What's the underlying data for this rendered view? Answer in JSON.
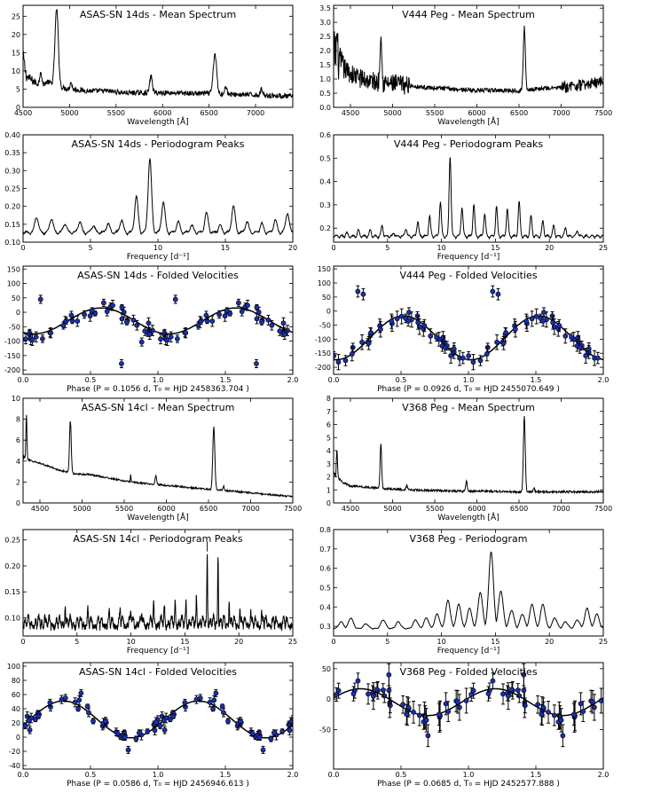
{
  "figure": {
    "grid": "6x2"
  },
  "chart_data": [
    {
      "type": "line",
      "title": "ASAS-SN 14ds - Mean Spectrum",
      "xlabel": "Wavelength [Å]",
      "ylabel": "",
      "xlim": [
        4500,
        7400
      ],
      "ylim": [
        0,
        28
      ],
      "xticks": [
        4500,
        5000,
        5500,
        6000,
        6500,
        7000
      ],
      "yticks": [
        0,
        5,
        10,
        15,
        20,
        25
      ],
      "series": [
        {
          "name": "spectrum",
          "style": "spectrum",
          "baseline": 5,
          "x": [
            4500,
            4620,
            4700,
            4760,
            4850,
            4900,
            5000,
            5200,
            5400,
            5600,
            5750,
            5880,
            5950,
            6100,
            6300,
            6500,
            6650,
            6800,
            7000,
            7200,
            7400
          ],
          "y": [
            9,
            7,
            6,
            7,
            6,
            5.5,
            5,
            4.5,
            4.5,
            4,
            4,
            4,
            4,
            4,
            3.8,
            3.8,
            3.6,
            3.5,
            3.4,
            3.2,
            3.0
          ],
          "lines": [
            [
              4861,
              21,
              18
            ],
            [
              4690,
              4,
              10
            ],
            [
              4500,
              5,
              15
            ],
            [
              5876,
              4.5,
              14
            ],
            [
              5015,
              2,
              10
            ],
            [
              6563,
              11,
              18
            ],
            [
              6678,
              2,
              14
            ],
            [
              7065,
              1.5,
              14
            ]
          ],
          "noise": 0.7
        }
      ]
    },
    {
      "type": "line",
      "title": "V444 Peg - Mean Spectrum",
      "xlabel": "Wavelength [Å]",
      "ylabel": "",
      "xlim": [
        4300,
        7500
      ],
      "ylim": [
        0,
        3.6
      ],
      "xticks": [
        4500,
        5000,
        5500,
        6000,
        6500,
        7000,
        7500
      ],
      "yticks": [
        0.0,
        0.5,
        1.0,
        1.5,
        2.0,
        2.5,
        3.0,
        3.5
      ],
      "series": [
        {
          "name": "spectrum",
          "style": "spectrum",
          "baseline": 0.8,
          "x": [
            4300,
            4350,
            4450,
            4550,
            4700,
            4900,
            5100,
            5400,
            5700,
            6000,
            6300,
            6500,
            6700,
            7000,
            7300,
            7500
          ],
          "y": [
            2.0,
            1.6,
            1.3,
            1.1,
            0.95,
            0.85,
            0.8,
            0.7,
            0.65,
            0.6,
            0.6,
            0.6,
            0.65,
            0.7,
            0.8,
            0.95
          ],
          "lines": [
            [
              4861,
              1.9,
              10
            ],
            [
              6563,
              2.2,
              12
            ],
            [
              4340,
              0.8,
              8
            ]
          ],
          "noise": 0.22
        }
      ]
    },
    {
      "type": "line",
      "title": "ASAS-SN 14ds - Periodogram Peaks",
      "xlabel": "Frequency [d⁻¹]",
      "ylabel": "",
      "xlim": [
        0,
        20
      ],
      "ylim": [
        0.1,
        0.4
      ],
      "xticks": [
        0,
        5,
        10,
        15,
        20
      ],
      "yticks": [
        0.1,
        0.15,
        0.2,
        0.25,
        0.3,
        0.35,
        0.4
      ],
      "series": [
        {
          "name": "power",
          "style": "periodogram",
          "baseline": 0.12,
          "width": 0.13,
          "peaks": [
            [
              1.0,
              0.165
            ],
            [
              2.1,
              0.16
            ],
            [
              3.1,
              0.145
            ],
            [
              4.2,
              0.15
            ],
            [
              5.2,
              0.14
            ],
            [
              6.3,
              0.145
            ],
            [
              7.3,
              0.155
            ],
            [
              8.4,
              0.22
            ],
            [
              9.4,
              0.325
            ],
            [
              10.4,
              0.205
            ],
            [
              11.5,
              0.15
            ],
            [
              12.5,
              0.14
            ],
            [
              13.6,
              0.175
            ],
            [
              14.6,
              0.14
            ],
            [
              15.6,
              0.195
            ],
            [
              16.6,
              0.15
            ],
            [
              17.7,
              0.145
            ],
            [
              18.7,
              0.155
            ],
            [
              19.6,
              0.175
            ]
          ],
          "noise": 0.008
        }
      ]
    },
    {
      "type": "line",
      "title": "V444 Peg - Periodogram Peaks",
      "xlabel": "Frequency [d⁻¹]",
      "ylabel": "",
      "xlim": [
        0,
        25
      ],
      "ylim": [
        0.14,
        0.6
      ],
      "xticks": [
        0,
        5,
        10,
        15,
        20,
        25
      ],
      "yticks": [
        0.2,
        0.3,
        0.4,
        0.5,
        0.6
      ],
      "series": [
        {
          "name": "power",
          "style": "periodogram",
          "baseline": 0.155,
          "width": 0.09,
          "peaks": [
            [
              3.4,
              0.18
            ],
            [
              4.5,
              0.2
            ],
            [
              5.6,
              0.17
            ],
            [
              6.7,
              0.19
            ],
            [
              7.8,
              0.22
            ],
            [
              8.9,
              0.24
            ],
            [
              9.9,
              0.3
            ],
            [
              10.8,
              0.5
            ],
            [
              11.9,
              0.28
            ],
            [
              13.0,
              0.29
            ],
            [
              14.0,
              0.25
            ],
            [
              15.1,
              0.28
            ],
            [
              16.1,
              0.27
            ],
            [
              17.2,
              0.3
            ],
            [
              18.3,
              0.24
            ],
            [
              19.4,
              0.22
            ],
            [
              20.4,
              0.2
            ],
            [
              21.5,
              0.19
            ],
            [
              22.6,
              0.18
            ],
            [
              1.2,
              0.17
            ],
            [
              2.3,
              0.18
            ]
          ],
          "noise": 0.012
        }
      ]
    },
    {
      "type": "scatter",
      "title": "ASAS-SN 14ds - Folded Velocities",
      "xlabel": "Phase (P =  0.1056 d,  T₀ = HJD 2458363.704 )",
      "ylabel": "",
      "xlim": [
        0,
        2.0
      ],
      "ylim": [
        -215,
        160
      ],
      "xticks": [
        0.0,
        0.5,
        1.0,
        1.5,
        2.0
      ],
      "yticks": [
        -200,
        -150,
        -100,
        -50,
        0,
        50,
        100,
        150
      ],
      "series": [
        {
          "name": "velocities",
          "style": "folded",
          "mean": -30,
          "amp": 45,
          "phase0": 0.58,
          "scatter": 22,
          "npts": 36,
          "err": 14,
          "outliers": [
            [
              0.13,
              45
            ],
            [
              0.73,
              -178
            ],
            [
              0.88,
              -103
            ],
            [
              1.13,
              45
            ],
            [
              1.73,
              -178
            ]
          ]
        }
      ]
    },
    {
      "type": "scatter",
      "title": "V444 Peg - Folded Velocities",
      "xlabel": "Phase (P =  0.0926 d,  T₀ = HJD 2455070.649 )",
      "ylabel": "",
      "xlim": [
        0,
        2.0
      ],
      "ylim": [
        -225,
        160
      ],
      "xticks": [
        0.0,
        0.5,
        1.0,
        1.5,
        2.0
      ],
      "yticks": [
        -200,
        -150,
        -100,
        -50,
        0,
        50,
        100,
        150
      ],
      "series": [
        {
          "name": "velocities",
          "style": "folded",
          "mean": -95,
          "amp": 78,
          "phase0": 0.52,
          "scatter": 22,
          "npts": 38,
          "err": 20,
          "outliers": [
            [
              0.18,
              70
            ],
            [
              0.22,
              60
            ],
            [
              1.18,
              70
            ],
            [
              1.22,
              60
            ]
          ]
        }
      ]
    },
    {
      "type": "line",
      "title": "ASAS-SN 14cl - Mean Spectrum",
      "xlabel": "Wavelength [Å]",
      "ylabel": "",
      "xlim": [
        4300,
        7500
      ],
      "ylim": [
        0,
        10
      ],
      "xticks": [
        4500,
        5000,
        5500,
        6000,
        6500,
        7000,
        7500
      ],
      "yticks": [
        0,
        2,
        4,
        6,
        8,
        10
      ],
      "series": [
        {
          "name": "spectrum",
          "style": "spectrum",
          "baseline": 2,
          "x": [
            4300,
            4340,
            4400,
            4500,
            4600,
            4700,
            4900,
            5100,
            5300,
            5500,
            5700,
            5900,
            6100,
            6300,
            6500,
            6700,
            6900,
            7100,
            7300,
            7500
          ],
          "y": [
            4.5,
            4.2,
            4.0,
            3.8,
            3.5,
            3.2,
            2.8,
            2.7,
            2.4,
            2.1,
            1.9,
            1.75,
            1.6,
            1.45,
            1.3,
            1.2,
            1.05,
            0.9,
            0.75,
            0.6
          ],
          "lines": [
            [
              4340,
              4.3,
              6
            ],
            [
              4861,
              5.0,
              10
            ],
            [
              5876,
              0.8,
              10
            ],
            [
              6563,
              6.0,
              12
            ],
            [
              5577,
              0.8,
              3
            ],
            [
              6678,
              0.4,
              8
            ]
          ],
          "noise": 0.08
        }
      ]
    },
    {
      "type": "line",
      "title": "V368 Peg - Mean Spectrum",
      "xlabel": "Wavelength [Å]",
      "ylabel": "",
      "xlim": [
        4300,
        7500
      ],
      "ylim": [
        0,
        8
      ],
      "xticks": [
        4500,
        5000,
        5500,
        6000,
        6500,
        7000,
        7500
      ],
      "yticks": [
        0,
        1,
        2,
        3,
        4,
        5,
        6,
        7,
        8
      ],
      "series": [
        {
          "name": "spectrum",
          "style": "spectrum",
          "baseline": 1,
          "x": [
            4300,
            4340,
            4400,
            4500,
            4700,
            4900,
            5200,
            5500,
            5800,
            6100,
            6400,
            6700,
            7000,
            7300,
            7500
          ],
          "y": [
            2.3,
            2.0,
            1.6,
            1.3,
            1.2,
            1.1,
            1.0,
            0.95,
            0.9,
            0.9,
            0.85,
            0.85,
            0.85,
            0.85,
            0.85
          ],
          "lines": [
            [
              4340,
              2.2,
              6
            ],
            [
              4861,
              3.4,
              9
            ],
            [
              5876,
              0.8,
              9
            ],
            [
              6563,
              5.8,
              11
            ],
            [
              5169,
              0.3,
              8
            ],
            [
              6678,
              0.3,
              8
            ]
          ],
          "noise": 0.08
        }
      ]
    },
    {
      "type": "line",
      "title": "ASAS-SN 14cl - Periodogram Peaks",
      "xlabel": "Frequency [d⁻¹]",
      "ylabel": "",
      "xlim": [
        0,
        25
      ],
      "ylim": [
        0.065,
        0.27
      ],
      "xticks": [
        0,
        5,
        10,
        15,
        20,
        25
      ],
      "yticks": [
        0.1,
        0.15,
        0.2,
        0.25
      ],
      "marker": {
        "x": 17.07,
        "label": "|"
      },
      "series": [
        {
          "name": "power",
          "style": "periodogram",
          "baseline": 0.075,
          "width": 0.035,
          "peaks": [
            [
              17.07,
              0.215
            ],
            [
              18.07,
              0.215
            ],
            [
              16.07,
              0.13
            ],
            [
              15.1,
              0.12
            ],
            [
              14.1,
              0.115
            ],
            [
              19.1,
              0.12
            ],
            [
              13.1,
              0.105
            ],
            [
              20.1,
              0.11
            ],
            [
              12.1,
              0.11
            ],
            [
              11.0,
              0.1
            ],
            [
              10.0,
              0.1
            ],
            [
              9.0,
              0.1
            ],
            [
              8.0,
              0.095
            ],
            [
              3.9,
              0.115
            ],
            [
              2.0,
              0.1
            ],
            [
              21.1,
              0.1
            ],
            [
              6.0,
              0.095
            ],
            [
              22.1,
              0.095
            ]
          ],
          "noise": 0.012,
          "dense": true
        }
      ]
    },
    {
      "type": "line",
      "title": "V368 Peg - Periodogram",
      "xlabel": "Frequency [d⁻¹]",
      "ylabel": "",
      "xlim": [
        0,
        25
      ],
      "ylim": [
        0.25,
        0.8
      ],
      "xticks": [
        0,
        5,
        10,
        15,
        20,
        25
      ],
      "yticks": [
        0.3,
        0.4,
        0.5,
        0.6,
        0.7,
        0.8
      ],
      "series": [
        {
          "name": "power",
          "style": "periodogram",
          "baseline": 0.285,
          "width": 0.22,
          "peaks": [
            [
              0.7,
              0.32
            ],
            [
              1.6,
              0.34
            ],
            [
              3.0,
              0.31
            ],
            [
              4.6,
              0.33
            ],
            [
              6.0,
              0.32
            ],
            [
              7.6,
              0.33
            ],
            [
              8.6,
              0.34
            ],
            [
              9.6,
              0.36
            ],
            [
              10.6,
              0.43
            ],
            [
              11.6,
              0.41
            ],
            [
              12.6,
              0.39
            ],
            [
              13.6,
              0.47
            ],
            [
              14.6,
              0.68
            ],
            [
              15.5,
              0.48
            ],
            [
              16.5,
              0.38
            ],
            [
              17.5,
              0.36
            ],
            [
              18.4,
              0.41
            ],
            [
              19.4,
              0.41
            ],
            [
              20.5,
              0.34
            ],
            [
              21.5,
              0.32
            ],
            [
              22.6,
              0.33
            ],
            [
              23.5,
              0.39
            ],
            [
              24.4,
              0.36
            ]
          ],
          "noise": 0.004
        }
      ]
    },
    {
      "type": "scatter",
      "title": "ASAS-SN 14cl - Folded Velocities",
      "xlabel": "Phase (P =  0.0586 d,  T₀ = HJD 2456946.613 )",
      "ylabel": "",
      "xlim": [
        0,
        2.0
      ],
      "ylim": [
        -45,
        105
      ],
      "xticks": [
        0.0,
        0.5,
        1.0,
        1.5,
        2.0
      ],
      "yticks": [
        -40,
        -20,
        0,
        20,
        40,
        60,
        80,
        100
      ],
      "series": [
        {
          "name": "velocities",
          "style": "folded",
          "mean": 25,
          "amp": 26,
          "phase0": 0.3,
          "scatter": 8,
          "npts": 38,
          "err": 5,
          "outliers": [
            [
              0.43,
              62
            ],
            [
              1.43,
              62
            ],
            [
              0.78,
              -18
            ],
            [
              1.78,
              -18
            ],
            [
              0.05,
              10
            ],
            [
              1.05,
              10
            ]
          ]
        }
      ]
    },
    {
      "type": "scatter",
      "title": "V368 Peg - Folded Velocities",
      "xlabel": "Phase (P =  0.0685 d,  T₀ = HJD 2452577.888 )",
      "ylabel": "",
      "xlim": [
        0,
        2.0
      ],
      "ylim": [
        -115,
        60
      ],
      "xticks": [
        0.0,
        0.5,
        1.0,
        1.5,
        2.0
      ],
      "yticks": [
        -50,
        0,
        50
      ],
      "series": [
        {
          "name": "velocities",
          "style": "folded",
          "mean": -5,
          "amp": 22,
          "phase0": 0.2,
          "scatter": 14,
          "npts": 36,
          "err": 18,
          "outliers": [
            [
              0.41,
              40
            ],
            [
              1.41,
              40
            ],
            [
              0.7,
              -60
            ],
            [
              1.7,
              -60
            ]
          ]
        }
      ]
    }
  ]
}
